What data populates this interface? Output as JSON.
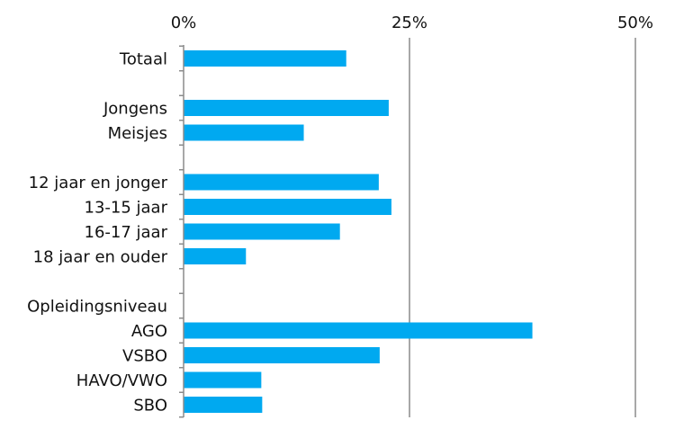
{
  "chart_data": {
    "type": "bar",
    "orientation": "horizontal",
    "xlim": [
      0,
      50
    ],
    "x_ticks": [
      "0%",
      "25%",
      "50%"
    ],
    "x_tick_values": [
      0,
      25,
      50
    ],
    "grid": true,
    "axis_position": "top",
    "bar_color": "#00a9f0",
    "categories": [
      "Totaal",
      "",
      "Jongens",
      "Meisjes",
      "",
      "12 jaar en jonger",
      "13-15 jaar",
      "16-17 jaar",
      "18 jaar en ouder",
      "",
      "Opleidingsniveau",
      "AGO",
      "VSBO",
      "HAVO/VWO",
      "SBO"
    ],
    "values": [
      18,
      null,
      22.7,
      13.3,
      null,
      21.6,
      23,
      17.3,
      6.9,
      null,
      null,
      38.6,
      21.7,
      8.6,
      8.7
    ]
  }
}
